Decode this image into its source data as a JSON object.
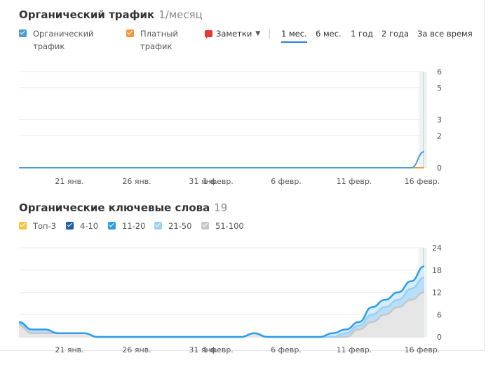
{
  "colors": {
    "organic": "#4a9bd6",
    "paid": "#f2973c",
    "top3": "#f2c542",
    "pos4_10": "#1f5ea8",
    "pos11_20": "#2c9de8",
    "pos21_50": "#9ad0f5",
    "pos51_100": "#c7c7c7"
  },
  "traffic": {
    "title": "Органический трафик",
    "count": "1/месяц",
    "legend": {
      "organic_line1": "Органический",
      "organic_line2": "трафик",
      "paid_line1": "Платный",
      "paid_line2": "трафик"
    },
    "notes_label": "Заметки",
    "periods": [
      "1 мес.",
      "6 мес.",
      "1 год",
      "2 года",
      "За все время"
    ],
    "active_period": "1 мес."
  },
  "keywords": {
    "title": "Органические ключевые слова",
    "count": "19",
    "legend": [
      "Топ-3",
      "4-10",
      "11-20",
      "21-50",
      "51-100"
    ]
  },
  "chart_data": [
    {
      "type": "line",
      "title": "Органический трафик",
      "ylim": [
        0,
        6
      ],
      "y_ticks": [
        "0",
        "2",
        "3",
        "5",
        "6"
      ],
      "x_ticks": [
        "21 янв.",
        "26 янв.",
        "31 янв.",
        "1 февр.",
        "6 февр.",
        "11 февр.",
        "16 февр."
      ],
      "grid": true,
      "series": [
        {
          "name": "Органический трафик",
          "color": "#4a9bd6",
          "values": [
            0,
            0,
            0,
            0,
            0,
            0,
            0,
            0,
            0,
            0,
            0,
            0,
            0,
            0,
            0,
            0,
            0,
            0,
            0,
            0,
            0,
            0,
            0,
            0,
            0,
            0,
            0,
            0,
            0,
            0,
            0,
            1
          ]
        },
        {
          "name": "Платный трафик",
          "color": "#f2973c",
          "values": [
            0,
            0,
            0,
            0,
            0,
            0,
            0,
            0,
            0,
            0,
            0,
            0,
            0,
            0,
            0,
            0,
            0,
            0,
            0,
            0,
            0,
            0,
            0,
            0,
            0,
            0,
            0,
            0,
            0,
            0,
            0,
            0
          ]
        }
      ]
    },
    {
      "type": "area",
      "title": "Органические ключевые слова",
      "ylim": [
        0,
        24
      ],
      "y_ticks": [
        "0",
        "6",
        "12",
        "18",
        "24"
      ],
      "x_ticks": [
        "21 янв.",
        "26 янв.",
        "31 янв.",
        "1 февр.",
        "6 февр.",
        "11 февр.",
        "16 февр."
      ],
      "grid": true,
      "series": [
        {
          "name": "11-20",
          "color": "#2c9de8",
          "values": [
            4,
            2,
            2,
            1,
            1,
            1,
            0,
            0,
            0,
            0,
            0,
            0,
            0,
            0,
            0,
            0,
            0,
            0,
            1,
            0,
            0,
            0,
            0,
            0,
            1,
            2,
            4,
            8,
            10,
            12,
            15,
            19
          ]
        },
        {
          "name": "21-50",
          "color": "#9ad0f5",
          "values": [
            3.5,
            2,
            2,
            1,
            1,
            1,
            0,
            0,
            0,
            0,
            0,
            0,
            0,
            0,
            0,
            0,
            0,
            0,
            1,
            0,
            0,
            0,
            0,
            0,
            0,
            1,
            3,
            6,
            8,
            10,
            13,
            16
          ]
        },
        {
          "name": "51-100",
          "color": "#c7c7c7",
          "values": [
            3,
            1,
            1,
            1,
            1,
            1,
            0,
            0,
            0,
            0,
            0,
            0,
            0,
            0,
            0,
            0,
            0,
            0,
            1,
            0,
            0,
            0,
            0,
            0,
            0,
            0,
            2,
            4,
            6,
            8,
            10,
            12
          ]
        }
      ]
    }
  ]
}
